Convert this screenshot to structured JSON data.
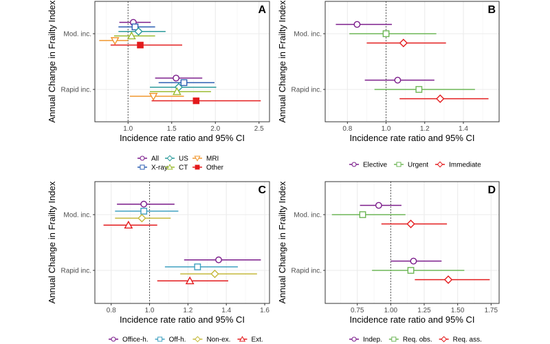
{
  "chart_data": [
    {
      "type": "forest",
      "panel_tag": "A",
      "xlabel": "Incidence rate ratio and 95% CI",
      "ylabel": "Annual Change in Frailty Index",
      "categories": [
        "Mod. inc.",
        "Rapid inc."
      ],
      "xlim": [
        0.62,
        2.62
      ],
      "xticks": [
        1.0,
        1.5,
        2.0,
        2.5
      ],
      "xtick_labels": [
        "1.0",
        "1.5",
        "2.0",
        "2.5"
      ],
      "reference_line": 1.0,
      "grid": true,
      "legend_position": "bottom",
      "series": [
        {
          "name": "All",
          "color": "#7a1a8a",
          "shape": "circle",
          "points": [
            {
              "est": 1.06,
              "lo": 0.9,
              "hi": 1.26
            },
            {
              "est": 1.55,
              "lo": 1.31,
              "hi": 1.85
            }
          ]
        },
        {
          "name": "X-ray",
          "color": "#2c5fb3",
          "shape": "square",
          "points": [
            {
              "est": 1.08,
              "lo": 0.89,
              "hi": 1.31
            },
            {
              "est": 1.64,
              "lo": 1.35,
              "hi": 1.99
            }
          ]
        },
        {
          "name": "US",
          "color": "#2a9a9a",
          "shape": "diamond",
          "points": [
            {
              "est": 1.12,
              "lo": 0.89,
              "hi": 1.43
            },
            {
              "est": 1.58,
              "lo": 1.25,
              "hi": 2.01
            }
          ]
        },
        {
          "name": "CT",
          "color": "#9bbb32",
          "shape": "triangle-up",
          "points": [
            {
              "est": 1.04,
              "lo": 0.84,
              "hi": 1.31
            },
            {
              "est": 1.56,
              "lo": 1.25,
              "hi": 1.95
            }
          ]
        },
        {
          "name": "MRI",
          "color": "#f0962d",
          "shape": "triangle-down",
          "points": [
            {
              "est": 0.85,
              "lo": 0.67,
              "hi": 1.0
            },
            {
              "est": 1.29,
              "lo": 1.02,
              "hi": 1.64
            }
          ]
        },
        {
          "name": "Other",
          "color": "#e31a1c",
          "shape": "square-filled",
          "points": [
            {
              "est": 1.14,
              "lo": 0.8,
              "hi": 1.62
            },
            {
              "est": 1.78,
              "lo": 1.27,
              "hi": 2.52
            }
          ]
        }
      ],
      "legend_columns": 3
    },
    {
      "type": "forest",
      "panel_tag": "B",
      "xlabel": "Incidence rate ratio and 95% CI",
      "ylabel": "Annual Change in Frailty Index",
      "categories": [
        "Mod. inc.",
        "Rapid inc."
      ],
      "xlim": [
        0.685,
        1.585
      ],
      "xticks": [
        0.8,
        1.0,
        1.2,
        1.4
      ],
      "xtick_labels": [
        "0.8",
        "1.0",
        "1.2",
        "1.4"
      ],
      "reference_line": 1.0,
      "grid": true,
      "legend_position": "bottom",
      "series": [
        {
          "name": "Elective",
          "color": "#7a1a8a",
          "shape": "circle",
          "points": [
            {
              "est": 0.85,
              "lo": 0.74,
              "hi": 1.03
            },
            {
              "est": 1.06,
              "lo": 0.89,
              "hi": 1.25
            }
          ]
        },
        {
          "name": "Urgent",
          "color": "#6db656",
          "shape": "square",
          "points": [
            {
              "est": 1.0,
              "lo": 0.81,
              "hi": 1.26
            },
            {
              "est": 1.17,
              "lo": 0.94,
              "hi": 1.46
            }
          ]
        },
        {
          "name": "Immediate",
          "color": "#e31a1c",
          "shape": "diamond",
          "points": [
            {
              "est": 1.09,
              "lo": 0.9,
              "hi": 1.31
            },
            {
              "est": 1.28,
              "lo": 1.07,
              "hi": 1.53
            }
          ]
        }
      ],
      "legend_columns": 3
    },
    {
      "type": "forest",
      "panel_tag": "C",
      "xlabel": "Incidence rate ratio and 95% CI",
      "ylabel": "Annual Change in Frailty Index",
      "categories": [
        "Mod. inc.",
        "Rapid inc."
      ],
      "xlim": [
        0.715,
        1.625
      ],
      "xticks": [
        0.8,
        1.0,
        1.2,
        1.4,
        1.6
      ],
      "xtick_labels": [
        "0.8",
        "1.0",
        "1.2",
        "1.4",
        "1.6"
      ],
      "reference_line": 1.0,
      "grid": true,
      "legend_position": "bottom",
      "series": [
        {
          "name": "Office-h.",
          "color": "#7a1a8a",
          "shape": "circle",
          "points": [
            {
              "est": 0.97,
              "lo": 0.83,
              "hi": 1.13
            },
            {
              "est": 1.36,
              "lo": 1.18,
              "hi": 1.58
            }
          ]
        },
        {
          "name": "Off-h.",
          "color": "#3fa0c0",
          "shape": "square",
          "points": [
            {
              "est": 0.97,
              "lo": 0.82,
              "hi": 1.15
            },
            {
              "est": 1.25,
              "lo": 1.08,
              "hi": 1.46
            }
          ]
        },
        {
          "name": "Non-ex.",
          "color": "#c4b83a",
          "shape": "diamond",
          "points": [
            {
              "est": 0.96,
              "lo": 0.82,
              "hi": 1.11
            },
            {
              "est": 1.34,
              "lo": 1.16,
              "hi": 1.56
            }
          ]
        },
        {
          "name": "Ext.",
          "color": "#e31a1c",
          "shape": "triangle-up",
          "points": [
            {
              "est": 0.89,
              "lo": 0.76,
              "hi": 1.04
            },
            {
              "est": 1.21,
              "lo": 1.04,
              "hi": 1.41
            }
          ]
        }
      ],
      "legend_columns": 4
    },
    {
      "type": "forest",
      "panel_tag": "D",
      "xlabel": "Incidence rate ratio and 95% CI",
      "ylabel": "Annual Change in Frailty Index",
      "categories": [
        "Mod. inc.",
        "Rapid inc."
      ],
      "xlim": [
        0.51,
        1.81
      ],
      "xticks": [
        0.75,
        1.0,
        1.25,
        1.5,
        1.75
      ],
      "xtick_labels": [
        "0.75",
        "1.00",
        "1.25",
        "1.50",
        "1.75"
      ],
      "reference_line": 1.0,
      "grid": true,
      "legend_position": "bottom",
      "series": [
        {
          "name": "Indep.",
          "color": "#7a1a8a",
          "shape": "circle",
          "points": [
            {
              "est": 0.91,
              "lo": 0.77,
              "hi": 1.08
            },
            {
              "est": 1.17,
              "lo": 1.0,
              "hi": 1.38
            }
          ]
        },
        {
          "name": "Req. obs.",
          "color": "#6db656",
          "shape": "square",
          "points": [
            {
              "est": 0.79,
              "lo": 0.56,
              "hi": 1.11
            },
            {
              "est": 1.15,
              "lo": 0.86,
              "hi": 1.55
            }
          ]
        },
        {
          "name": "Req. ass.",
          "color": "#e31a1c",
          "shape": "diamond",
          "points": [
            {
              "est": 1.15,
              "lo": 0.93,
              "hi": 1.42
            },
            {
              "est": 1.43,
              "lo": 1.18,
              "hi": 1.74
            }
          ]
        }
      ],
      "legend_columns": 3
    }
  ]
}
